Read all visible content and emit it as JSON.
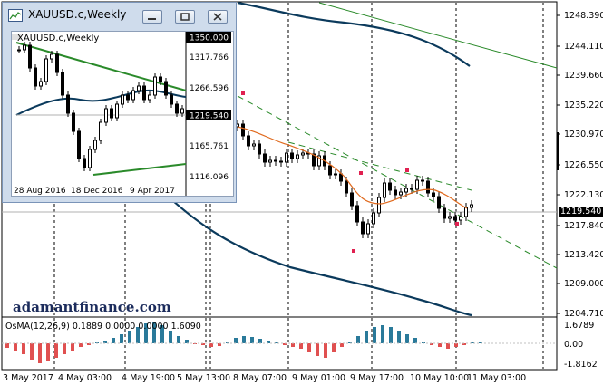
{
  "window_title": "XAUUSD.c,Weekly",
  "inset": {
    "title": "XAUUSD.c,Weekly",
    "price_axis": [
      "1350.000",
      "1317.766",
      "1266.596",
      "1219.540",
      "1165.761",
      "1116.096"
    ],
    "time_axis": [
      "28 Aug 2016",
      "18 Dec 2016",
      "9 Apr 2017"
    ]
  },
  "price_axis": [
    "1248.390",
    "1244.110",
    "1239.660",
    "1235.220",
    "1230.970",
    "1226.550",
    "1222.130",
    "1219.540",
    "1217.840",
    "1213.420",
    "1209.000",
    "1204.710"
  ],
  "current_price": "1219.540",
  "time_axis": [
    "3 May 2017",
    "4 May 03:00",
    "4 May 19:00",
    "5 May 13:00",
    "8 May 07:00",
    "9 May 01:00",
    "9 May 17:00",
    "10 May 10:00",
    "11 May 03:00"
  ],
  "watermark": "adamantfinance.com",
  "indicator": {
    "label": "OsMA(12,26,9) 0.1889 0.0000 0.0000 1.6090",
    "axis": [
      "1.6789",
      "0.00",
      "-1.8162"
    ]
  },
  "colors": {
    "bullish_candle": "#000000",
    "bearish_candle": "#000000",
    "ma": "#e06a1e",
    "band": "#0b3a5c",
    "trend": "#2a8a2a",
    "osma_pos": "#2a7a9a",
    "osma_neg": "#e05050"
  }
}
